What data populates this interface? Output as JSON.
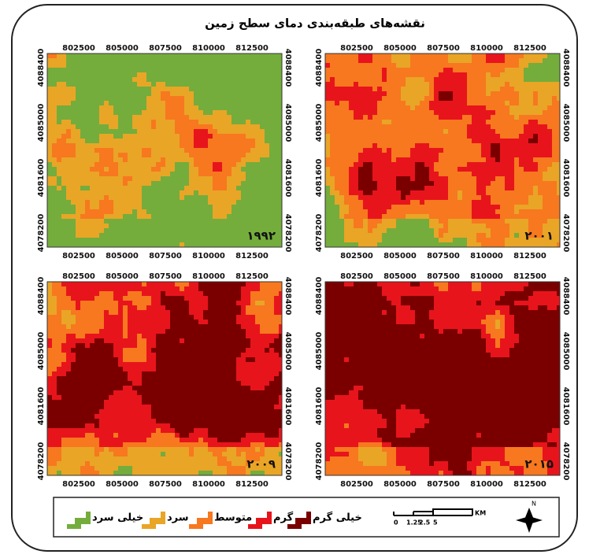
{
  "title": "نقشه‌های طبقه‌بندی دمای سطح زمین",
  "x_ticks": [
    "802500",
    "805000",
    "807500",
    "810000",
    "812500"
  ],
  "y_ticks": [
    "4088400",
    "4085000",
    "4081600",
    "4078200"
  ],
  "maps": [
    {
      "year": "۱۹۹۲"
    },
    {
      "year": "۲۰۰۱"
    },
    {
      "year": "۲۰۰۹"
    },
    {
      "year": "۲۰۱۵"
    }
  ],
  "legend": [
    {
      "label": "خیلی سرد",
      "color": "#74ad3c"
    },
    {
      "label": "سرد",
      "color": "#e9a526"
    },
    {
      "label": "متوسط",
      "color": "#f7781f"
    },
    {
      "label": "گرم",
      "color": "#e8141c"
    },
    {
      "label": "خیلی گرم",
      "color": "#7a0000"
    }
  ],
  "scale_bar": {
    "labels": [
      "0",
      "1.25",
      "2.5",
      "5"
    ],
    "unit": "KM"
  },
  "north": "N"
}
